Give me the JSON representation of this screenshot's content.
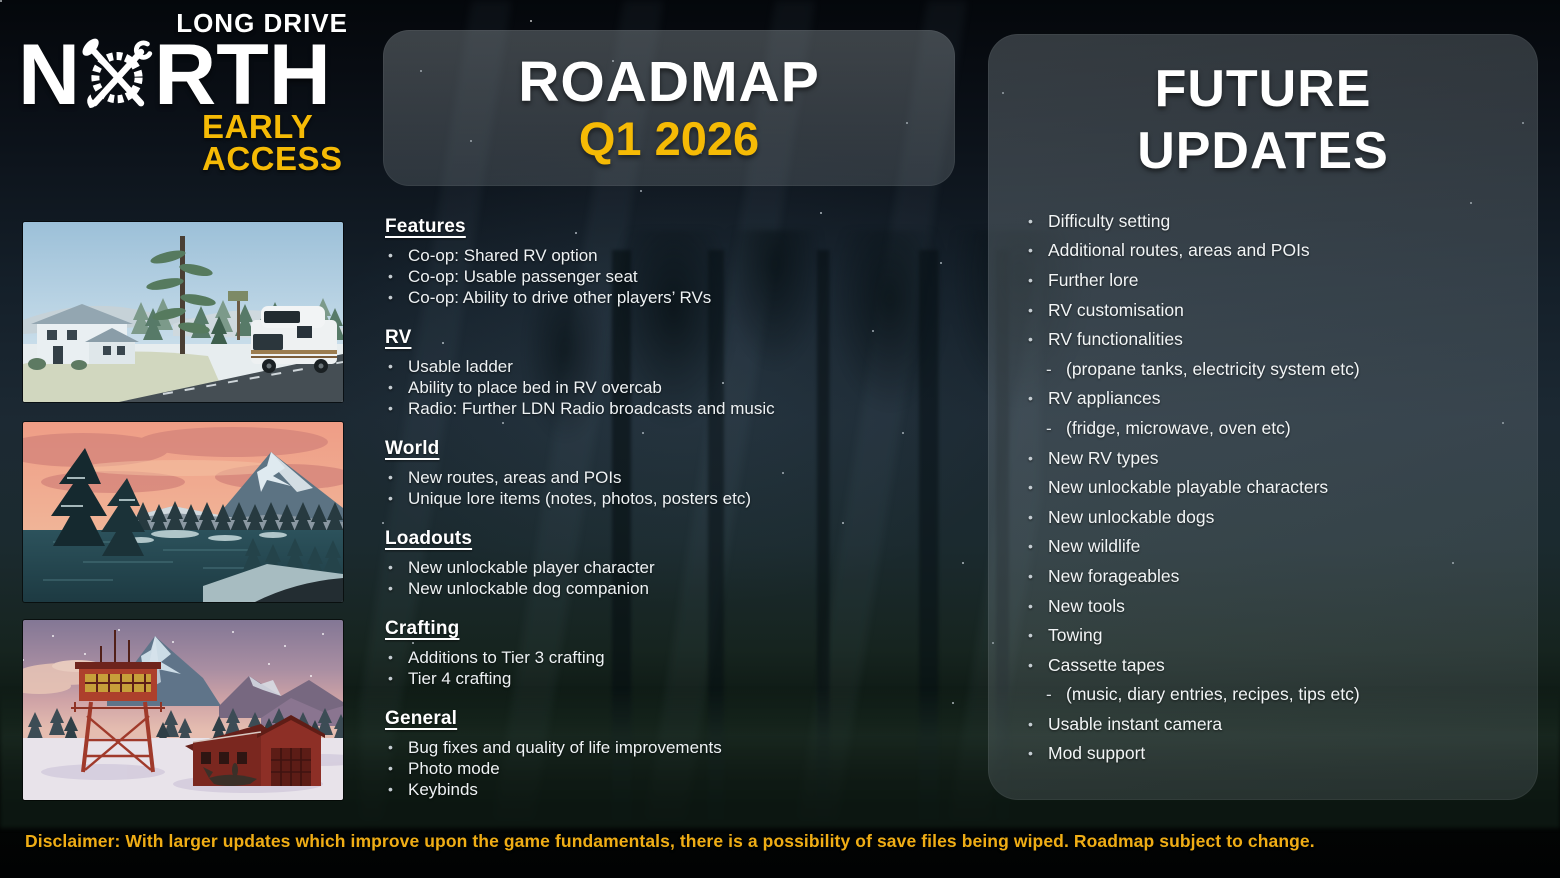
{
  "logo": {
    "line1": "LONG DRIVE",
    "line2_pre": "N",
    "line2_post": "RTH",
    "line3": "EARLY",
    "line4": "ACCESS"
  },
  "roadmap_panel": {
    "title": "ROADMAP",
    "subtitle": "Q1 2026"
  },
  "sections": [
    {
      "heading": "Features",
      "items": [
        "Co-op: Shared RV option",
        "Co-op: Usable passenger seat",
        "Co-op: Ability to drive other players’ RVs"
      ]
    },
    {
      "heading": "RV",
      "items": [
        "Usable ladder",
        "Ability to place bed in RV overcab",
        "Radio: Further LDN Radio broadcasts and music"
      ]
    },
    {
      "heading": "World",
      "items": [
        "New routes, areas and POIs",
        "Unique lore items (notes, photos, posters etc)"
      ]
    },
    {
      "heading": "Loadouts",
      "items": [
        "New unlockable player character",
        "New unlockable dog companion"
      ]
    },
    {
      "heading": "Crafting",
      "items": [
        "Additions to Tier 3 crafting",
        "Tier 4 crafting"
      ]
    },
    {
      "heading": "General",
      "items": [
        "Bug fixes and quality of life improvements",
        "Photo mode",
        "Keybinds"
      ]
    }
  ],
  "future_panel": {
    "title_line1": "FUTURE",
    "title_line2": "UPDATES",
    "items": [
      {
        "text": "Difficulty setting",
        "sub": false
      },
      {
        "text": "Additional routes, areas and POIs",
        "sub": false
      },
      {
        "text": "Further lore",
        "sub": false
      },
      {
        "text": "RV customisation",
        "sub": false
      },
      {
        "text": "RV functionalities",
        "sub": false
      },
      {
        "text": "(propane tanks, electricity system etc)",
        "sub": true
      },
      {
        "text": "RV appliances",
        "sub": false
      },
      {
        "text": "(fridge, microwave, oven etc)",
        "sub": true
      },
      {
        "text": "New RV types",
        "sub": false
      },
      {
        "text": "New unlockable playable characters",
        "sub": false
      },
      {
        "text": "New unlockable dogs",
        "sub": false
      },
      {
        "text": "New wildlife",
        "sub": false
      },
      {
        "text": "New forageables",
        "sub": false
      },
      {
        "text": "New tools",
        "sub": false
      },
      {
        "text": "Towing",
        "sub": false
      },
      {
        "text": "Cassette tapes",
        "sub": false
      },
      {
        "text": "(music, diary entries, recipes, tips etc)",
        "sub": true
      },
      {
        "text": "Usable instant camera",
        "sub": false
      },
      {
        "text": "Mod support",
        "sub": false
      }
    ]
  },
  "screenshots": [
    {
      "name": "winter-house-rv",
      "alt": "Snowy roadside with white house, pines and a white RV camper"
    },
    {
      "name": "sunset-mountain-lake",
      "alt": "Pink sunset over a snowy mountain, dark lake and silhouetted pines"
    },
    {
      "name": "dusk-lookout-tower",
      "alt": "Red fire lookout tower and red hangar with small plane at purple dusk"
    }
  ],
  "disclaimer": "Disclaimer: With larger updates which improve upon the game fundamentals, there is a possibility of save files being wiped. Roadmap subject to change.",
  "colors": {
    "accent_yellow": "#F5BA05",
    "disclaimer_orange": "#EFAD15",
    "panel_tint": "#8C9AA0",
    "background_dark": "#0B131B",
    "text_white": "#FFFFFF"
  }
}
